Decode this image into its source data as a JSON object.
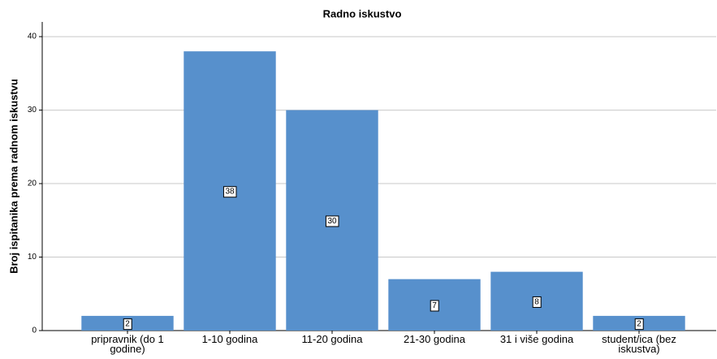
{
  "chart_data": {
    "type": "bar",
    "title": "Radno iskustvo",
    "y_label": "Broj ispitanika prema radnom iskustvu",
    "categories": [
      "pripravnik (do 1 godine)",
      "1-10 godina",
      "11-20 godina",
      "21-30 godina",
      "31 i više godina",
      "student/ica (bez iskustva)"
    ],
    "values": [
      2,
      38,
      30,
      7,
      8,
      2
    ],
    "color": "#5790cc",
    "ylim": [
      0,
      42
    ],
    "yticks": [
      0,
      10,
      20,
      30,
      40
    ],
    "grid": true
  }
}
